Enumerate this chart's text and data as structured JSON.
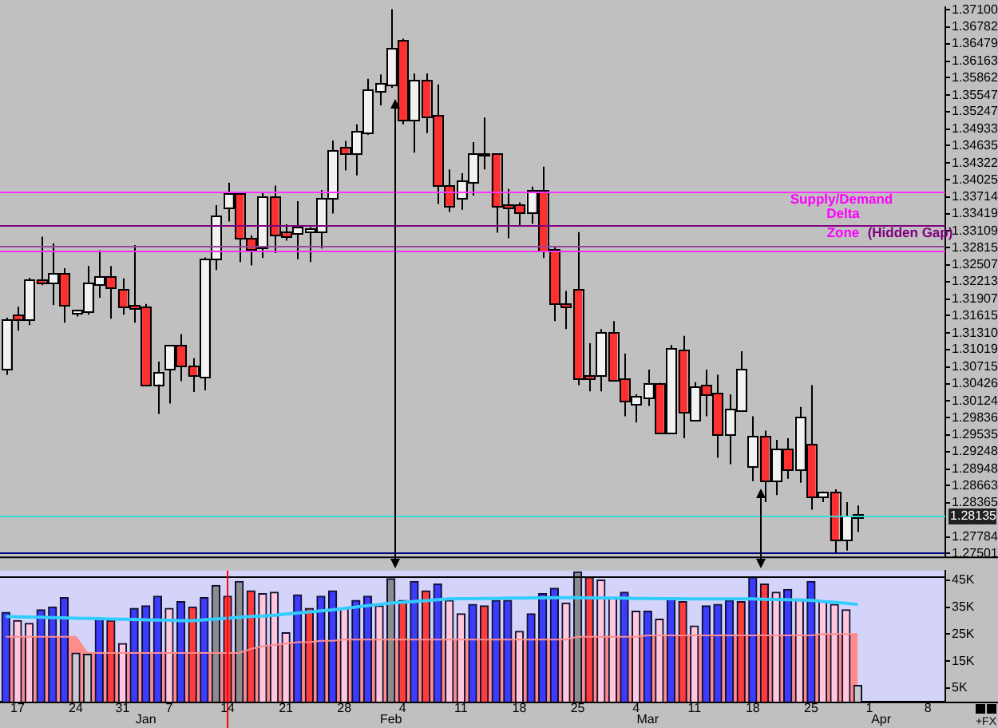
{
  "chart_data": [
    {
      "type": "candlestick",
      "log": true,
      "tick_labels": "y",
      "categories": [
        null,
        null,
        null,
        null,
        null,
        null,
        null,
        null,
        null,
        null,
        null,
        null,
        null,
        null,
        null,
        null,
        null,
        null,
        null,
        null,
        null,
        null,
        null,
        null,
        null,
        null,
        null,
        null,
        null,
        null,
        null,
        null,
        null,
        null,
        null,
        null,
        null,
        null,
        null,
        null,
        null,
        null,
        null,
        null,
        null,
        null,
        null,
        null,
        null,
        null,
        null,
        null,
        null,
        null,
        null,
        null,
        null,
        null,
        null,
        null,
        null,
        null,
        null,
        null,
        null,
        null,
        null,
        null,
        null,
        null,
        null,
        null,
        null,
        null,
        null,
        null,
        null,
        null,
        null,
        null,
        null
      ],
      "ohlc": [
        [
          1.3069,
          1.3158,
          1.3058,
          1.3152
        ],
        [
          1.3162,
          1.3177,
          1.3135,
          1.3155
        ],
        [
          1.3156,
          1.3228,
          1.3145,
          1.3222
        ],
        [
          1.3223,
          1.3301,
          1.3215,
          1.3219
        ],
        [
          1.3219,
          1.3289,
          1.318,
          1.3235
        ],
        [
          1.3235,
          1.3245,
          1.3149,
          1.3179
        ],
        [
          1.3166,
          1.3172,
          1.316,
          1.3168
        ],
        [
          1.3168,
          1.3249,
          1.3163,
          1.3217
        ],
        [
          1.3217,
          1.3277,
          1.3193,
          1.3228
        ],
        [
          1.3227,
          1.3249,
          1.3156,
          1.321
        ],
        [
          1.3205,
          1.3227,
          1.3163,
          1.3177
        ],
        [
          1.3177,
          1.3286,
          1.3149,
          1.3175
        ],
        [
          1.3176,
          1.3182,
          1.3038,
          1.304
        ],
        [
          1.3042,
          1.3081,
          1.299,
          1.3061
        ],
        [
          1.3069,
          1.311,
          1.3008,
          1.3108
        ],
        [
          1.3108,
          1.3129,
          1.3047,
          1.3074
        ],
        [
          1.3071,
          1.3087,
          1.3028,
          1.3056
        ],
        [
          1.3055,
          1.3264,
          1.3031,
          1.326
        ],
        [
          1.3261,
          1.3357,
          1.3242,
          1.3335
        ],
        [
          1.3354,
          1.3397,
          1.3328,
          1.3375
        ],
        [
          1.3376,
          1.3381,
          1.3256,
          1.3298
        ],
        [
          1.3297,
          1.3303,
          1.325,
          1.328
        ],
        [
          1.3281,
          1.3381,
          1.3263,
          1.3369
        ],
        [
          1.3369,
          1.3392,
          1.3272,
          1.3305
        ],
        [
          1.3306,
          1.3323,
          1.3294,
          1.3301
        ],
        [
          1.3306,
          1.3364,
          1.3261,
          1.3315
        ],
        [
          1.331,
          1.3318,
          1.3256,
          1.3314
        ],
        [
          1.331,
          1.3384,
          1.328,
          1.3368
        ],
        [
          1.337,
          1.3473,
          1.3342,
          1.3452
        ],
        [
          1.3459,
          1.3472,
          1.3419,
          1.3451
        ],
        [
          1.345,
          1.3502,
          1.341,
          1.3488
        ],
        [
          1.3488,
          1.3584,
          1.3483,
          1.3563
        ],
        [
          1.3563,
          1.3592,
          1.3536,
          1.3574
        ],
        [
          1.3574,
          1.3711,
          1.3568,
          1.3638
        ],
        [
          1.3652,
          1.3657,
          1.3502,
          1.3509
        ],
        [
          1.3509,
          1.3594,
          1.3451,
          1.3579
        ],
        [
          1.3579,
          1.3594,
          1.3486,
          1.3517
        ],
        [
          1.3517,
          1.3574,
          1.3359,
          1.3392
        ],
        [
          1.339,
          1.3421,
          1.3345,
          1.3357
        ],
        [
          1.337,
          1.3414,
          1.3349,
          1.3399
        ],
        [
          1.3399,
          1.347,
          1.3374,
          1.3447
        ],
        [
          1.3446,
          1.3514,
          1.3421,
          1.3447
        ],
        [
          1.3447,
          1.345,
          1.3308,
          1.3355
        ],
        [
          1.3355,
          1.3386,
          1.3298,
          1.3352
        ],
        [
          1.3357,
          1.3362,
          1.3321,
          1.3344
        ],
        [
          1.3344,
          1.339,
          1.3324,
          1.3381
        ],
        [
          1.3381,
          1.3426,
          1.3263,
          1.3275
        ],
        [
          1.3275,
          1.3282,
          1.3152,
          1.3182
        ],
        [
          1.318,
          1.3205,
          1.3138,
          1.3178
        ],
        [
          1.3207,
          1.3309,
          1.304,
          1.3053
        ],
        [
          1.3055,
          1.3113,
          1.3029,
          1.3053
        ],
        [
          1.3058,
          1.3138,
          1.3029,
          1.3129
        ],
        [
          1.3129,
          1.3152,
          1.3047,
          1.3049
        ],
        [
          1.3049,
          1.3095,
          1.2986,
          1.3013
        ],
        [
          1.3006,
          1.3024,
          1.2975,
          1.3018
        ],
        [
          1.3018,
          1.3067,
          1.3004,
          1.3042
        ],
        [
          1.3042,
          1.3044,
          1.2955,
          1.2957
        ],
        [
          1.2957,
          1.311,
          1.2955,
          1.3101
        ],
        [
          1.3099,
          1.3126,
          1.2948,
          1.2993
        ],
        [
          1.298,
          1.3045,
          1.2977,
          1.3036
        ],
        [
          1.3037,
          1.3067,
          1.2986,
          1.3024
        ],
        [
          1.3024,
          1.3058,
          1.2914,
          1.2954
        ],
        [
          1.2954,
          1.3024,
          1.2903,
          1.2996
        ],
        [
          1.2996,
          1.3099,
          1.2995,
          1.3067
        ],
        [
          1.29,
          1.2986,
          1.2874,
          1.295
        ],
        [
          1.295,
          1.2961,
          1.2838,
          1.2876
        ],
        [
          1.2876,
          1.2945,
          1.285,
          1.2927
        ],
        [
          1.2927,
          1.2948,
          1.2878,
          1.2893
        ],
        [
          1.2893,
          1.3002,
          1.2871,
          1.2982
        ],
        [
          1.2936,
          1.304,
          1.2825,
          1.2847
        ],
        [
          1.2847,
          1.2856,
          1.2838,
          1.2853
        ],
        [
          1.2853,
          1.286,
          1.275,
          1.2774
        ],
        [
          1.2774,
          1.2838,
          1.2755,
          1.2812
        ],
        [
          1.2812,
          1.2832,
          1.2787,
          1.2814
        ],
        null,
        null,
        null,
        null,
        null,
        null,
        null
      ],
      "colors": [
        "#f2f2f2",
        "#ff3030",
        "#f2f2f2",
        "#ff3030",
        "#f2f2f2",
        "#ff3030",
        "#f2f2f2",
        "#f2f2f2",
        "#f2f2f2",
        "#ff3030",
        "#ff3030",
        "#ff3030",
        "#ff3030",
        "#f2f2f2",
        "#f2f2f2",
        "#ff3030",
        "#ff3030",
        "#f2f2f2",
        "#f2f2f2",
        "#f2f2f2",
        "#ff3030",
        "#ff3030",
        "#f2f2f2",
        "#ff3030",
        "#ff3030",
        "#f2f2f2",
        "#f2f2f2",
        "#f2f2f2",
        "#f2f2f2",
        "#ff3030",
        "#f2f2f2",
        "#f2f2f2",
        "#f2f2f2",
        "#f2f2f2",
        "#ff3030",
        "#f2f2f2",
        "#ff3030",
        "#ff3030",
        "#ff3030",
        "#f2f2f2",
        "#f2f2f2",
        "#f2f2f2",
        "#ff3030",
        "#ff3030",
        "#ff3030",
        "#f2f2f2",
        "#ff3030",
        "#ff3030",
        "#ff3030",
        "#ff3030",
        "#ff3030",
        "#f2f2f2",
        "#ff3030",
        "#ff3030",
        "#f2f2f2",
        "#f2f2f2",
        "#ff3030",
        "#f2f2f2",
        "#ff3030",
        "#f2f2f2",
        "#ff3030",
        "#ff3030",
        "#f2f2f2",
        "#f2f2f2",
        "#f2f2f2",
        "#ff3030",
        "#f2f2f2",
        "#ff3030",
        "#f2f2f2",
        "#ff3030",
        "#f2f2f2",
        "#ff3030",
        "#f2f2f2",
        "#f2f2f2",
        null,
        null,
        null,
        null,
        null,
        null,
        null
      ],
      "ylim": [
        1.2745,
        1.3715
      ],
      "yticks": [
        {
          "value": 1.371,
          "label": "1.37100"
        },
        {
          "value": 1.36782,
          "label": "1.36782"
        },
        {
          "value": 1.36479,
          "label": "1.36479"
        },
        {
          "value": 1.36163,
          "label": "1.36163"
        },
        {
          "value": 1.35862,
          "label": "1.35862"
        },
        {
          "value": 1.35547,
          "label": "1.35547"
        },
        {
          "value": 1.35247,
          "label": "1.35247"
        },
        {
          "value": 1.34933,
          "label": "1.34933"
        },
        {
          "value": 1.34635,
          "label": "1.34635"
        },
        {
          "value": 1.34322,
          "label": "1.34322"
        },
        {
          "value": 1.34025,
          "label": "1.34025"
        },
        {
          "value": 1.33714,
          "label": "1.33714"
        },
        {
          "value": 1.33419,
          "label": "1.33419"
        },
        {
          "value": 1.33109,
          "label": "1.33109"
        },
        {
          "value": 1.32815,
          "label": "1.32815"
        },
        {
          "value": 1.32507,
          "label": "1.32507"
        },
        {
          "value": 1.32213,
          "label": "1.32213"
        },
        {
          "value": 1.31907,
          "label": "1.31907"
        },
        {
          "value": 1.31615,
          "label": "1.31615"
        },
        {
          "value": 1.3131,
          "label": "1.31310"
        },
        {
          "value": 1.31019,
          "label": "1.31019"
        },
        {
          "value": 1.30715,
          "label": "1.30715"
        },
        {
          "value": 1.30426,
          "label": "1.30426"
        },
        {
          "value": 1.30124,
          "label": "1.30124"
        },
        {
          "value": 1.29836,
          "label": "1.29836"
        },
        {
          "value": 1.29535,
          "label": "1.29535"
        },
        {
          "value": 1.29248,
          "label": "1.29248"
        },
        {
          "value": 1.28948,
          "label": "1.28948"
        },
        {
          "value": 1.28663,
          "label": "1.28663"
        },
        {
          "value": 1.28365,
          "label": "1.28365"
        },
        {
          "value": 1.27784,
          "label": "1.27784"
        },
        {
          "value": 1.27501,
          "label": "1.27501"
        }
      ],
      "ref_lines": [
        {
          "axis": "y",
          "value": 1.3381,
          "label": null,
          "color": "#ff33ff"
        },
        {
          "axis": "y",
          "value": 1.3321,
          "label": null,
          "color": "#800080"
        },
        {
          "axis": "y",
          "value": 1.3284,
          "label": null,
          "color": "#994499"
        },
        {
          "axis": "y",
          "value": 1.3277,
          "label": null,
          "color": "#ff33ff"
        },
        {
          "axis": "y",
          "value": 1.28135,
          "label": "1.28135",
          "color": "#33dddd"
        },
        {
          "axis": "y",
          "value": 1.2753,
          "label": null,
          "color": "#000080"
        }
      ],
      "annotations": [
        "Supply/Demand",
        "Delta",
        "Zone",
        "(Hidden Gap)"
      ]
    },
    {
      "type": "bar",
      "categories": [
        null,
        "17",
        null,
        null,
        null,
        null,
        "24",
        null,
        null,
        null,
        "31",
        null,
        "Jan",
        null,
        "7",
        null,
        null,
        null,
        null,
        "14",
        null,
        null,
        null,
        null,
        "21",
        null,
        null,
        null,
        null,
        "28",
        null,
        null,
        null,
        "Feb",
        "4",
        null,
        null,
        null,
        null,
        "11",
        null,
        null,
        null,
        null,
        "18",
        null,
        null,
        null,
        null,
        "25",
        null,
        null,
        null,
        null,
        "4",
        "Mar",
        null,
        null,
        null,
        "11",
        null,
        null,
        null,
        null,
        "18",
        null,
        null,
        null,
        null,
        "25",
        null,
        null,
        null,
        null,
        "1",
        "Apr",
        null,
        null,
        null,
        "8",
        null
      ],
      "series": [
        {
          "type": "bar",
          "values": [
            33000,
            30000,
            29000,
            34000,
            35000,
            38500,
            18000,
            17500,
            30500,
            30000,
            21500,
            34500,
            35500,
            39000,
            34500,
            37000,
            35000,
            38500,
            43000,
            39000,
            44500,
            41000,
            40000,
            40500,
            25500,
            39500,
            34500,
            39000,
            41000,
            34500,
            37500,
            39000,
            35500,
            45500,
            37500,
            44500,
            41000,
            43500,
            37500,
            32500,
            36000,
            35500,
            37500,
            37500,
            26000,
            32500,
            40000,
            42000,
            36500,
            48000,
            46000,
            45000,
            38500,
            40500,
            33500,
            33500,
            30500,
            38500,
            37000,
            28000,
            35500,
            36000,
            37500,
            37000,
            46000,
            43500,
            40500,
            41500,
            38000,
            44500,
            37000,
            36000,
            34000,
            6000,
            null,
            null,
            null,
            null,
            null,
            null,
            null
          ],
          "colors": [
            "#3c3cff",
            "#ffc8dc",
            "#ffc8dc",
            "#3c3cff",
            "#3c3cff",
            "#3c3cff",
            "#c8c8c8",
            "#c8c8c8",
            "#3c3cff",
            "#ff3c3c",
            "#ffc8dc",
            "#3c3cff",
            "#3c3cff",
            "#3c3cff",
            "#ffc8dc",
            "#3c3cff",
            "#ff3c3c",
            "#3c3cff",
            "#8c8c8c",
            "#ff3c3c",
            "#8c8c8c",
            "#ff3c3c",
            "#ffc8dc",
            "#ffc8dc",
            "#ffc8dc",
            "#3c3cff",
            "#ff3c3c",
            "#3c3cff",
            "#3c3cff",
            "#ffc8dc",
            "#3c3cff",
            "#3c3cff",
            "#ffc8dc",
            "#8c8c8c",
            "#ff3c3c",
            "#3c3cff",
            "#ff3c3c",
            "#3c3cff",
            "#ffc8dc",
            "#ffc8dc",
            "#3c3cff",
            "#ff3c3c",
            "#3c3cff",
            "#3c3cff",
            "#ffc8dc",
            "#3c3cff",
            "#3c3cff",
            "#3c3cff",
            "#ffc8dc",
            "#8c8c8c",
            "#ff3c3c",
            "#ffc8dc",
            "#ffc8dc",
            "#3c3cff",
            "#ffc8dc",
            "#3c3cff",
            "#ffc8dc",
            "#3c3cff",
            "#ff3c3c",
            "#ffc8dc",
            "#3c3cff",
            "#3c3cff",
            "#3c3cff",
            "#ff3c3c",
            "#3c3cff",
            "#ff3c3c",
            "#ffc8dc",
            "#3c3cff",
            "#ffc8dc",
            "#3c3cff",
            "#ffc8dc",
            "#ffc8dc",
            "#ffc8dc",
            "#c8c8c8",
            null,
            null,
            null,
            null,
            null,
            null,
            null
          ]
        },
        {
          "type": "line",
          "color": "#33ccff",
          "values": [
            31500,
            31400,
            31300,
            31200,
            31100,
            31000,
            30900,
            30800,
            30700,
            30600,
            30500,
            30400,
            30300,
            30200,
            30100,
            30000,
            30000,
            30300,
            30600,
            30900,
            31200,
            31500,
            31700,
            32000,
            32400,
            32800,
            33200,
            33600,
            34000,
            34500,
            35000,
            35500,
            36000,
            36500,
            36800,
            37100,
            37400,
            37700,
            38000,
            38100,
            38100,
            38200,
            38200,
            38300,
            38300,
            38400,
            38400,
            38500,
            38500,
            38500,
            38400,
            38400,
            38300,
            38300,
            38200,
            38200,
            38100,
            38100,
            38000,
            38000,
            38000,
            38000,
            38000,
            38000,
            38000,
            37900,
            37800,
            37700,
            37600,
            37500,
            37100,
            36800,
            36400,
            36000,
            null,
            null,
            null,
            null,
            null,
            null,
            null
          ]
        },
        {
          "type": "area",
          "color": "#ff8c8c",
          "values": [
            24000,
            24000,
            24000,
            24000,
            24000,
            24000,
            24000,
            18000,
            18000,
            18000,
            18000,
            18000,
            18000,
            18000,
            18000,
            18000,
            18000,
            18000,
            18000,
            18000,
            18000,
            19500,
            20500,
            21000,
            21500,
            22000,
            22000,
            22500,
            22500,
            23000,
            23000,
            23000,
            23000,
            23000,
            23000,
            23000,
            23000,
            23000,
            23000,
            23000,
            23000,
            23000,
            23000,
            23000,
            23000,
            23000,
            23000,
            23000,
            23000,
            24000,
            24000,
            24000,
            24000,
            24000,
            24000,
            24500,
            24500,
            24500,
            24500,
            24500,
            24500,
            24500,
            24500,
            24500,
            24500,
            24500,
            24500,
            24500,
            24500,
            24500,
            25000,
            25000,
            25000,
            25000,
            null,
            null,
            null,
            null,
            null,
            null,
            null
          ]
        }
      ],
      "ylim": [
        0,
        48500
      ],
      "yticks": [
        {
          "value": 5000,
          "label": "5K"
        },
        {
          "value": 15000,
          "label": "15K"
        },
        {
          "value": 25000,
          "label": "25K"
        },
        {
          "value": 35000,
          "label": "35K"
        },
        {
          "value": 45000,
          "label": "45K"
        }
      ],
      "ref_lines": [
        {
          "axis": "y",
          "value": 46100,
          "label": null,
          "color": "#000000"
        },
        {
          "axis": "x",
          "value": "14",
          "label": null,
          "color": "#ff0000"
        }
      ],
      "annotations": [
        "+FX"
      ]
    }
  ]
}
